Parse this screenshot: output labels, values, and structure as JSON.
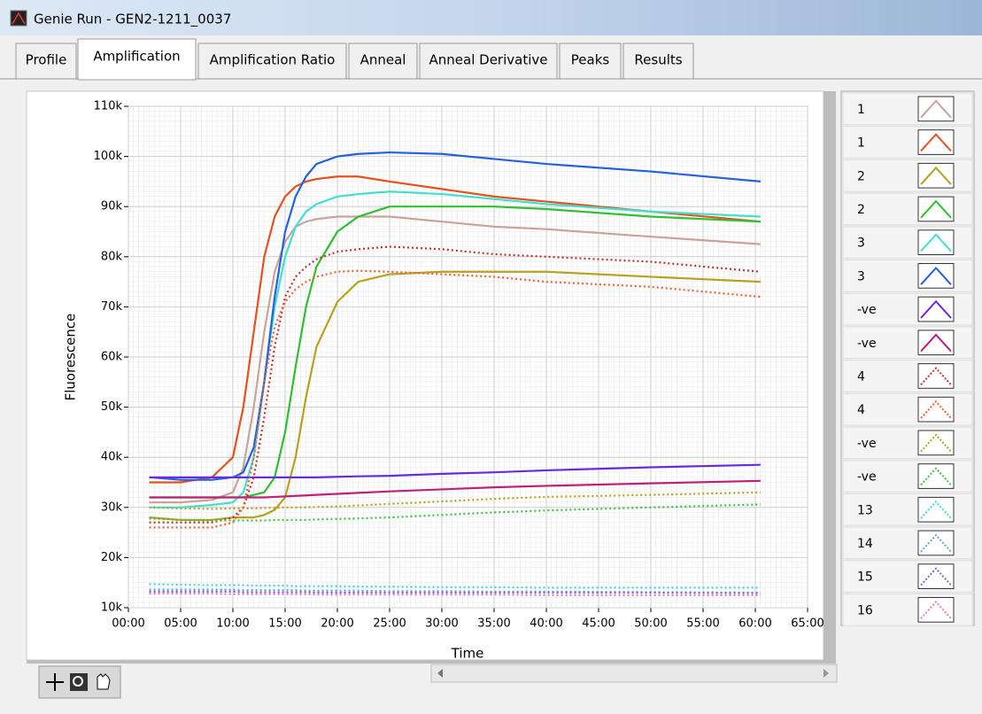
{
  "window": {
    "title": "Genie Run - GEN2-1211_0037"
  },
  "tabs": [
    "Profile",
    "Amplification",
    "Amplification Ratio",
    "Anneal",
    "Anneal Derivative",
    "Peaks",
    "Results"
  ],
  "active_tab": 1,
  "chart_data": {
    "type": "line",
    "x_label": "Time",
    "y_label": "Fluorescence",
    "grid": true,
    "xlim": [
      0,
      65
    ],
    "xticks": [
      {
        "value": 0,
        "label": "00:00"
      },
      {
        "value": 5,
        "label": "05:00"
      },
      {
        "value": 10,
        "label": "10:00"
      },
      {
        "value": 15,
        "label": "15:00"
      },
      {
        "value": 20,
        "label": "20:00"
      },
      {
        "value": 25,
        "label": "25:00"
      },
      {
        "value": 30,
        "label": "30:00"
      },
      {
        "value": 35,
        "label": "35:00"
      },
      {
        "value": 40,
        "label": "40:00"
      },
      {
        "value": 45,
        "label": "45:00"
      },
      {
        "value": 50,
        "label": "50:00"
      },
      {
        "value": 55,
        "label": "55:00"
      },
      {
        "value": 60,
        "label": "60:00"
      },
      {
        "value": 65,
        "label": "65:00"
      }
    ],
    "ylim": [
      10000,
      110000
    ],
    "yticks": [
      {
        "value": 10000,
        "label": "10k"
      },
      {
        "value": 20000,
        "label": "20k"
      },
      {
        "value": 30000,
        "label": "30k"
      },
      {
        "value": 40000,
        "label": "40k"
      },
      {
        "value": 50000,
        "label": "50k"
      },
      {
        "value": 60000,
        "label": "60k"
      },
      {
        "value": 70000,
        "label": "70k"
      },
      {
        "value": 80000,
        "label": "80k"
      },
      {
        "value": 90000,
        "label": "90k"
      },
      {
        "value": 100000,
        "label": "100k"
      },
      {
        "value": 110000,
        "label": "110k"
      }
    ],
    "x": [
      2,
      5,
      8,
      10,
      11,
      12,
      13,
      14,
      15,
      16,
      17,
      18,
      20,
      22,
      25,
      30,
      35,
      40,
      50,
      60.5
    ],
    "series": [
      {
        "name": "1",
        "color": "#c9a39b",
        "dash": "solid",
        "values": [
          31000,
          31000,
          31500,
          33000,
          38000,
          50000,
          65000,
          77000,
          83000,
          86000,
          87000,
          87500,
          88000,
          88000,
          88000,
          87000,
          86000,
          85500,
          84000,
          82500
        ]
      },
      {
        "name": "1",
        "color": "#e8501e",
        "dash": "solid",
        "values": [
          35000,
          35000,
          36000,
          40000,
          50000,
          65000,
          80000,
          88000,
          92000,
          94000,
          95000,
          95500,
          96000,
          96000,
          95000,
          93500,
          92000,
          91000,
          89000,
          87000
        ]
      },
      {
        "name": "2",
        "color": "#b8a020",
        "dash": "solid",
        "values": [
          28000,
          27500,
          27500,
          28000,
          28000,
          28000,
          28500,
          29500,
          32000,
          40000,
          52000,
          62000,
          71000,
          75000,
          76500,
          77000,
          77000,
          77000,
          76000,
          75000
        ]
      },
      {
        "name": "2",
        "color": "#2ec02e",
        "dash": "solid",
        "values": [
          32000,
          32000,
          32000,
          32000,
          32000,
          32500,
          33000,
          36000,
          45000,
          58000,
          70000,
          78000,
          85000,
          88000,
          90000,
          90000,
          90000,
          89500,
          88000,
          87000
        ]
      },
      {
        "name": "3",
        "color": "#3fe0cf",
        "dash": "solid",
        "values": [
          30000,
          30000,
          30500,
          31000,
          33000,
          40000,
          55000,
          70000,
          80000,
          86000,
          89000,
          90500,
          92000,
          92500,
          93000,
          92500,
          91500,
          90500,
          89000,
          88000
        ]
      },
      {
        "name": "3",
        "color": "#2262e0",
        "dash": "solid",
        "values": [
          36000,
          35500,
          35500,
          36000,
          37000,
          42000,
          55000,
          72000,
          85000,
          92000,
          96000,
          98500,
          100000,
          100500,
          100800,
          100500,
          99500,
          98500,
          97000,
          95000
        ]
      },
      {
        "name": "-ve",
        "color": "#6a2ae0",
        "dash": "solid",
        "values": [
          36000,
          36000,
          36000,
          36000,
          36000,
          36000,
          36000,
          36000,
          36000,
          36000,
          36000,
          36000,
          36100,
          36200,
          36300,
          36700,
          37000,
          37400,
          38000,
          38500
        ]
      },
      {
        "name": "-ve",
        "color": "#c0207a",
        "dash": "solid",
        "values": [
          32000,
          32000,
          32000,
          32000,
          32000,
          32000,
          32000,
          32100,
          32200,
          32300,
          32400,
          32500,
          32700,
          32900,
          33200,
          33600,
          34000,
          34300,
          34800,
          35300
        ]
      },
      {
        "name": "4",
        "color": "#c83030",
        "dash": "dotted",
        "values": [
          27000,
          27000,
          27000,
          28000,
          30000,
          36000,
          48000,
          62000,
          72000,
          76000,
          78000,
          79500,
          81000,
          81500,
          82000,
          81500,
          80500,
          80000,
          79000,
          77000
        ]
      },
      {
        "name": "4",
        "color": "#f06030",
        "dash": "dotted",
        "values": [
          26000,
          26000,
          26000,
          27000,
          30000,
          40000,
          55000,
          66000,
          71000,
          73500,
          75000,
          76000,
          77000,
          77200,
          77000,
          76500,
          76000,
          75000,
          74000,
          72000
        ]
      },
      {
        "name": "-ve",
        "color": "#b8a020",
        "dash": "dotted",
        "values": [
          30000,
          29800,
          29700,
          29800,
          29800,
          29800,
          29900,
          29900,
          30000,
          30000,
          30000,
          30100,
          30200,
          30400,
          30700,
          31200,
          31700,
          32100,
          32500,
          33000
        ]
      },
      {
        "name": "-ve",
        "color": "#40c040",
        "dash": "dotted",
        "values": [
          27800,
          27500,
          27400,
          27400,
          27400,
          27400,
          27400,
          27500,
          27500,
          27500,
          27500,
          27600,
          27700,
          27800,
          28000,
          28500,
          29000,
          29400,
          30000,
          30600
        ]
      },
      {
        "name": "13",
        "color": "#3fd8d8",
        "dash": "dotted",
        "values": [
          14700,
          14600,
          14500,
          14500,
          14500,
          14400,
          14400,
          14400,
          14400,
          14300,
          14300,
          14300,
          14300,
          14200,
          14200,
          14100,
          14100,
          14000,
          14000,
          14000
        ]
      },
      {
        "name": "14",
        "color": "#60a0e0",
        "dash": "dotted",
        "values": [
          13600,
          13600,
          13600,
          13600,
          13500,
          13500,
          13500,
          13500,
          13500,
          13500,
          13400,
          13400,
          13400,
          13400,
          13300,
          13300,
          13200,
          13200,
          13100,
          13000
        ]
      },
      {
        "name": "15",
        "color": "#8060e0",
        "dash": "dotted",
        "values": [
          13200,
          13200,
          13200,
          13200,
          13100,
          13100,
          13100,
          13100,
          13100,
          13100,
          13100,
          13000,
          13000,
          13000,
          13000,
          13000,
          13000,
          13000,
          13000,
          12900
        ]
      },
      {
        "name": "16",
        "color": "#e080c0",
        "dash": "dotted",
        "values": [
          12800,
          12800,
          12800,
          12700,
          12700,
          12700,
          12700,
          12700,
          12700,
          12700,
          12700,
          12600,
          12600,
          12600,
          12600,
          12600,
          12600,
          12500,
          12500,
          12500
        ]
      }
    ]
  }
}
